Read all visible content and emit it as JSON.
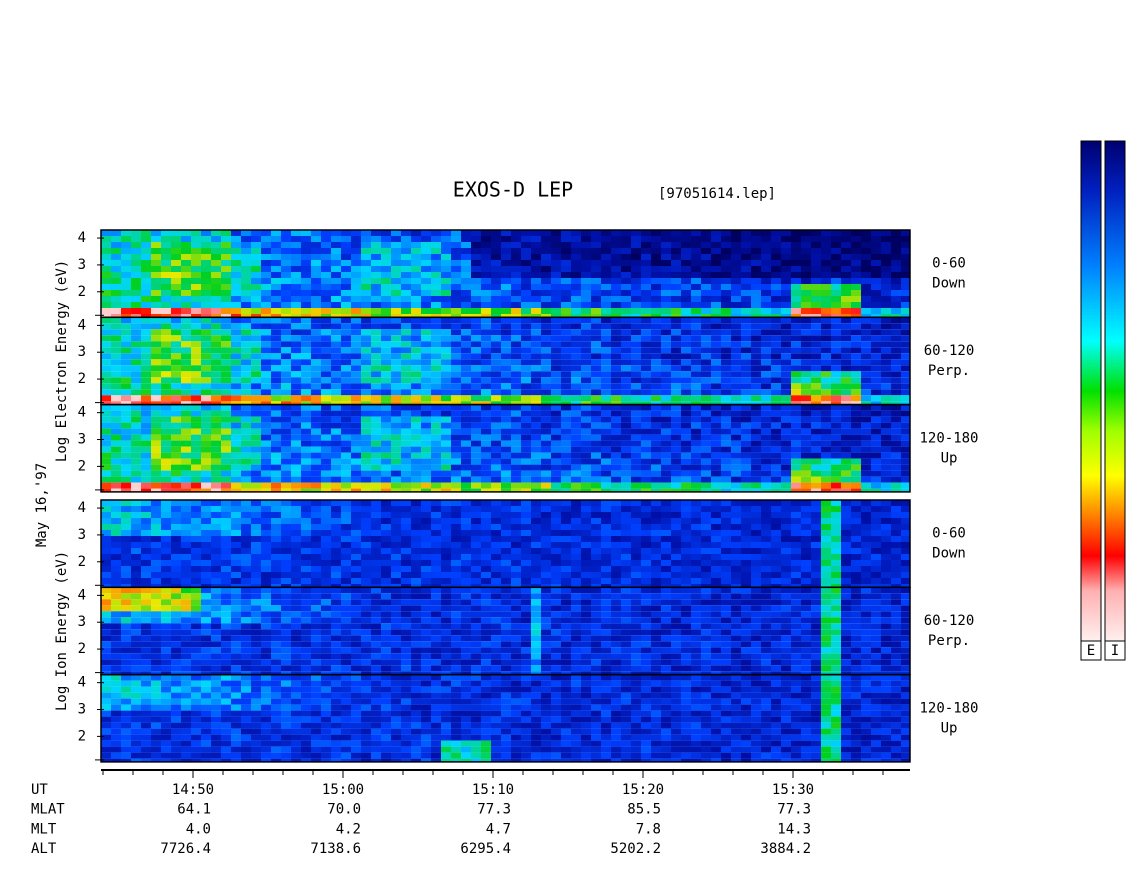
{
  "chart_data": {
    "type": "spectrogram",
    "title": "EXOS-D LEP",
    "file": "[97051614.lep]",
    "date_label": "May 16,'97",
    "xlim": [
      "14:43:52",
      "15:37:48"
    ],
    "xticks": [
      "14:50",
      "15:00",
      "15:10",
      "15:20",
      "15:30"
    ],
    "ylim": [
      1.05,
      4.3
    ],
    "yticks": [
      2,
      3,
      4
    ],
    "groups": [
      {
        "species": "electron",
        "y_label": "Log Electron Energy (eV)",
        "panels": [
          {
            "pitch": "0-60",
            "dir": "Down"
          },
          {
            "pitch": "60-120",
            "dir": "Perp."
          },
          {
            "pitch": "120-180",
            "dir": "Up"
          }
        ]
      },
      {
        "species": "ion",
        "y_label": "Log Ion Energy (eV)",
        "panels": [
          {
            "pitch": "0-60",
            "dir": "Down"
          },
          {
            "pitch": "60-120",
            "dir": "Perp."
          },
          {
            "pitch": "120-180",
            "dir": "Up"
          }
        ]
      }
    ],
    "ephemeris": [
      {
        "label": "UT",
        "values": []
      },
      {
        "label": "MLAT",
        "values": [
          "64.1",
          "70.0",
          "77.3",
          "85.5",
          "77.3"
        ]
      },
      {
        "label": "MLT",
        "values": [
          "4.0",
          "4.2",
          "4.7",
          "7.8",
          "14.3"
        ]
      },
      {
        "label": "ALT",
        "values": [
          "7726.4",
          "7138.6",
          "6295.4",
          "5202.2",
          "3884.2"
        ]
      }
    ],
    "colorbars": [
      "E",
      "I"
    ]
  }
}
